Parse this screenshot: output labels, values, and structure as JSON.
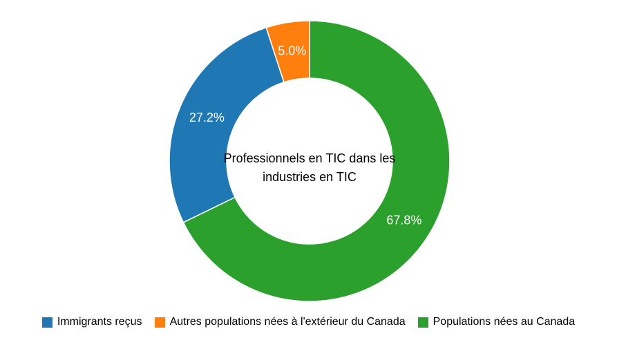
{
  "chart_data": {
    "type": "pie",
    "style": "donut",
    "center_label": "Professionnels en TIC dans les industries en TIC",
    "slices": [
      {
        "name": "Populations nées au Canada",
        "value": 67.8,
        "label": "67.8%",
        "color": "#2ca02c"
      },
      {
        "name": "Immigrants reçus",
        "value": 27.2,
        "label": "27.2%",
        "color": "#1f77b4"
      },
      {
        "name": "Autres populations nées à l'extérieur du Canada",
        "value": 5.0,
        "label": "5.0%",
        "color": "#ff7f0e"
      }
    ],
    "legend": {
      "position": "bottom",
      "items": [
        {
          "label": "Immigrants reçus",
          "color": "#1f77b4"
        },
        {
          "label": "Autres populations nées à l'extérieur du Canada",
          "color": "#ff7f0e"
        },
        {
          "label": "Populations nées au Canada",
          "color": "#2ca02c"
        }
      ]
    }
  }
}
